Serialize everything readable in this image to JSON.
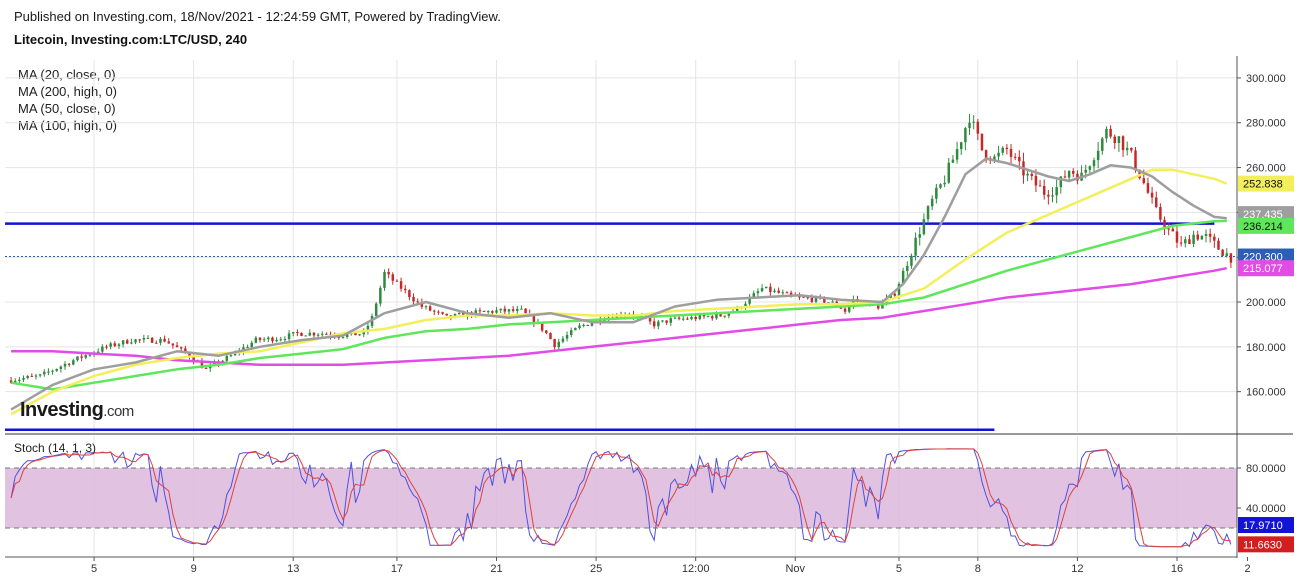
{
  "header": {
    "published": "Published on Investing.com, 18/Nov/2021 - 12:24:59 GMT, Powered by TradingView.",
    "title": "Litecoin, Investing.com:LTC/USD, 240"
  },
  "legend": [
    "MA (20, close, 0)",
    "MA (200, high, 0)",
    "MA (50, close, 0)",
    "MA (100, high, 0)"
  ],
  "logo": {
    "brand": "Investing",
    "suffix": ".com"
  },
  "stoch_label": "Stoch (14, 1, 3)",
  "colors": {
    "up": "#2e8b3e",
    "down": "#c62828",
    "ma20": "#9e9e9e",
    "ma200": "#e24ce6",
    "ma50": "#f2ef5a",
    "ma100": "#5fe65a",
    "level": "#1313d6",
    "stoch_k": "#5050e0",
    "stoch_d": "#e04040",
    "stoch_band": "#dcb8dc",
    "grid": "#e4e4e4"
  },
  "chart_data": [
    {
      "type": "candlestick",
      "x_tick_labels": [
        "5",
        "9",
        "13",
        "17",
        "21",
        "25",
        "12:00",
        "Nov",
        "5",
        "8",
        "12",
        "16",
        "2"
      ],
      "y_ticks": [
        "300.000",
        "280.000",
        "260.000",
        "240.000",
        "220.000",
        "200.000",
        "180.000",
        "160.000"
      ],
      "ylim": [
        142,
        308
      ],
      "price_tags": [
        {
          "value": "252.838",
          "price": 252.838,
          "bg": "#f2ef5a",
          "fg": "#111111"
        },
        {
          "value": "237.435",
          "price": 237.435,
          "bg": "#9e9e9e",
          "fg": "#ffffff"
        },
        {
          "value": "236.214",
          "price": 236.214,
          "bg": "#5fe65a",
          "fg": "#111111"
        },
        {
          "value": "220.300",
          "price": 220.3,
          "bg": "#2b5fb7",
          "fg": "#ffffff"
        },
        {
          "value": "215.077",
          "price": 215.077,
          "bg": "#e24ce6",
          "fg": "#ffffff"
        }
      ],
      "horizontal_levels": [
        235.0,
        143.0
      ],
      "last_price_line": 220.3,
      "anchors": [
        [
          0,
          165
        ],
        [
          8,
          167
        ],
        [
          16,
          174
        ],
        [
          24,
          180
        ],
        [
          30,
          183
        ],
        [
          38,
          183
        ],
        [
          44,
          176
        ],
        [
          48,
          170
        ],
        [
          54,
          176
        ],
        [
          60,
          183
        ],
        [
          66,
          184
        ],
        [
          70,
          186
        ],
        [
          76,
          186
        ],
        [
          80,
          185
        ],
        [
          86,
          186
        ],
        [
          88,
          193
        ],
        [
          91,
          213
        ],
        [
          94,
          208
        ],
        [
          100,
          198
        ],
        [
          106,
          193
        ],
        [
          112,
          195
        ],
        [
          118,
          196
        ],
        [
          124,
          196
        ],
        [
          128,
          190
        ],
        [
          130,
          186
        ],
        [
          132,
          181
        ],
        [
          138,
          189
        ],
        [
          144,
          193
        ],
        [
          150,
          195
        ],
        [
          156,
          190
        ],
        [
          160,
          192
        ],
        [
          166,
          193
        ],
        [
          172,
          194
        ],
        [
          176,
          197
        ],
        [
          182,
          206
        ],
        [
          186,
          204
        ],
        [
          190,
          202
        ],
        [
          196,
          201
        ],
        [
          200,
          199
        ],
        [
          202,
          196
        ],
        [
          204,
          201
        ],
        [
          210,
          198
        ],
        [
          214,
          204
        ],
        [
          217,
          218
        ],
        [
          220,
          232
        ],
        [
          223,
          245
        ],
        [
          226,
          255
        ],
        [
          229,
          268
        ],
        [
          232,
          283
        ],
        [
          235,
          268
        ],
        [
          238,
          264
        ],
        [
          241,
          268
        ],
        [
          244,
          260
        ],
        [
          247,
          254
        ],
        [
          250,
          249
        ],
        [
          253,
          251
        ],
        [
          256,
          259
        ],
        [
          259,
          256
        ],
        [
          262,
          266
        ],
        [
          265,
          276
        ],
        [
          268,
          273
        ],
        [
          271,
          265
        ],
        [
          274,
          253
        ],
        [
          277,
          240
        ],
        [
          280,
          232
        ],
        [
          283,
          225
        ],
        [
          286,
          230
        ],
        [
          289,
          229
        ],
        [
          292,
          224
        ],
        [
          295,
          220
        ]
      ],
      "ma20": [
        [
          0,
          152
        ],
        [
          10,
          163
        ],
        [
          20,
          170
        ],
        [
          30,
          173
        ],
        [
          40,
          178
        ],
        [
          50,
          176
        ],
        [
          60,
          180
        ],
        [
          70,
          183
        ],
        [
          80,
          185
        ],
        [
          90,
          195
        ],
        [
          100,
          200
        ],
        [
          110,
          195
        ],
        [
          120,
          193
        ],
        [
          130,
          195
        ],
        [
          140,
          191
        ],
        [
          150,
          191
        ],
        [
          160,
          198
        ],
        [
          170,
          201
        ],
        [
          180,
          202
        ],
        [
          190,
          203
        ],
        [
          200,
          201
        ],
        [
          210,
          200
        ],
        [
          215,
          208
        ],
        [
          220,
          221
        ],
        [
          225,
          238
        ],
        [
          230,
          257
        ],
        [
          235,
          264
        ],
        [
          240,
          262
        ],
        [
          250,
          256
        ],
        [
          255,
          254
        ],
        [
          260,
          257
        ],
        [
          265,
          261
        ],
        [
          270,
          260
        ],
        [
          275,
          256
        ],
        [
          280,
          249
        ],
        [
          285,
          243
        ],
        [
          290,
          238
        ],
        [
          293,
          237.4
        ]
      ],
      "ma50": [
        [
          0,
          150
        ],
        [
          10,
          160
        ],
        [
          20,
          167
        ],
        [
          30,
          172
        ],
        [
          40,
          175
        ],
        [
          50,
          177
        ],
        [
          60,
          178
        ],
        [
          70,
          182
        ],
        [
          80,
          186
        ],
        [
          90,
          188
        ],
        [
          100,
          192
        ],
        [
          110,
          194
        ],
        [
          120,
          194
        ],
        [
          130,
          195
        ],
        [
          140,
          194
        ],
        [
          150,
          194
        ],
        [
          160,
          196
        ],
        [
          170,
          197
        ],
        [
          180,
          198
        ],
        [
          190,
          199
        ],
        [
          200,
          199
        ],
        [
          210,
          200
        ],
        [
          220,
          206
        ],
        [
          230,
          219
        ],
        [
          240,
          231
        ],
        [
          250,
          239
        ],
        [
          260,
          247
        ],
        [
          270,
          255
        ],
        [
          275,
          259
        ],
        [
          280,
          259
        ],
        [
          285,
          257
        ],
        [
          290,
          255
        ],
        [
          293,
          252.8
        ]
      ],
      "ma100": [
        [
          0,
          164
        ],
        [
          10,
          161
        ],
        [
          20,
          164
        ],
        [
          30,
          167
        ],
        [
          40,
          170
        ],
        [
          50,
          172
        ],
        [
          60,
          175
        ],
        [
          70,
          177
        ],
        [
          80,
          179
        ],
        [
          90,
          184
        ],
        [
          100,
          187
        ],
        [
          110,
          188
        ],
        [
          120,
          190
        ],
        [
          130,
          191
        ],
        [
          140,
          192
        ],
        [
          150,
          193
        ],
        [
          160,
          194
        ],
        [
          170,
          195
        ],
        [
          180,
          196
        ],
        [
          190,
          197
        ],
        [
          200,
          198
        ],
        [
          210,
          199
        ],
        [
          220,
          202
        ],
        [
          230,
          208
        ],
        [
          240,
          214
        ],
        [
          250,
          219
        ],
        [
          260,
          224
        ],
        [
          270,
          229
        ],
        [
          280,
          234
        ],
        [
          290,
          236
        ],
        [
          293,
          236.2
        ]
      ],
      "ma200": [
        [
          0,
          178
        ],
        [
          10,
          178
        ],
        [
          20,
          177
        ],
        [
          30,
          176
        ],
        [
          40,
          174
        ],
        [
          50,
          173
        ],
        [
          60,
          172
        ],
        [
          70,
          172
        ],
        [
          80,
          172
        ],
        [
          90,
          173
        ],
        [
          100,
          174
        ],
        [
          110,
          175
        ],
        [
          120,
          176
        ],
        [
          130,
          178
        ],
        [
          140,
          180
        ],
        [
          150,
          182
        ],
        [
          160,
          184
        ],
        [
          170,
          186
        ],
        [
          180,
          188
        ],
        [
          190,
          190
        ],
        [
          200,
          192
        ],
        [
          210,
          193
        ],
        [
          220,
          196
        ],
        [
          230,
          199
        ],
        [
          240,
          202
        ],
        [
          250,
          204
        ],
        [
          260,
          206
        ],
        [
          270,
          208
        ],
        [
          280,
          211
        ],
        [
          290,
          214
        ],
        [
          293,
          215.1
        ]
      ]
    },
    {
      "type": "line",
      "name": "Stoch (14, 1, 3)",
      "y_ticks": [
        "80.0000",
        "40.0000"
      ],
      "band": [
        20,
        80
      ],
      "ylim": [
        -8,
        112
      ],
      "value_tags": [
        {
          "value": "17.9710",
          "level": 17.971,
          "bg": "#1313d6",
          "fg": "#ffffff"
        },
        {
          "value": "11.6630",
          "level": 11.663,
          "bg": "#d21e1e",
          "fg": "#ffffff"
        }
      ]
    }
  ]
}
